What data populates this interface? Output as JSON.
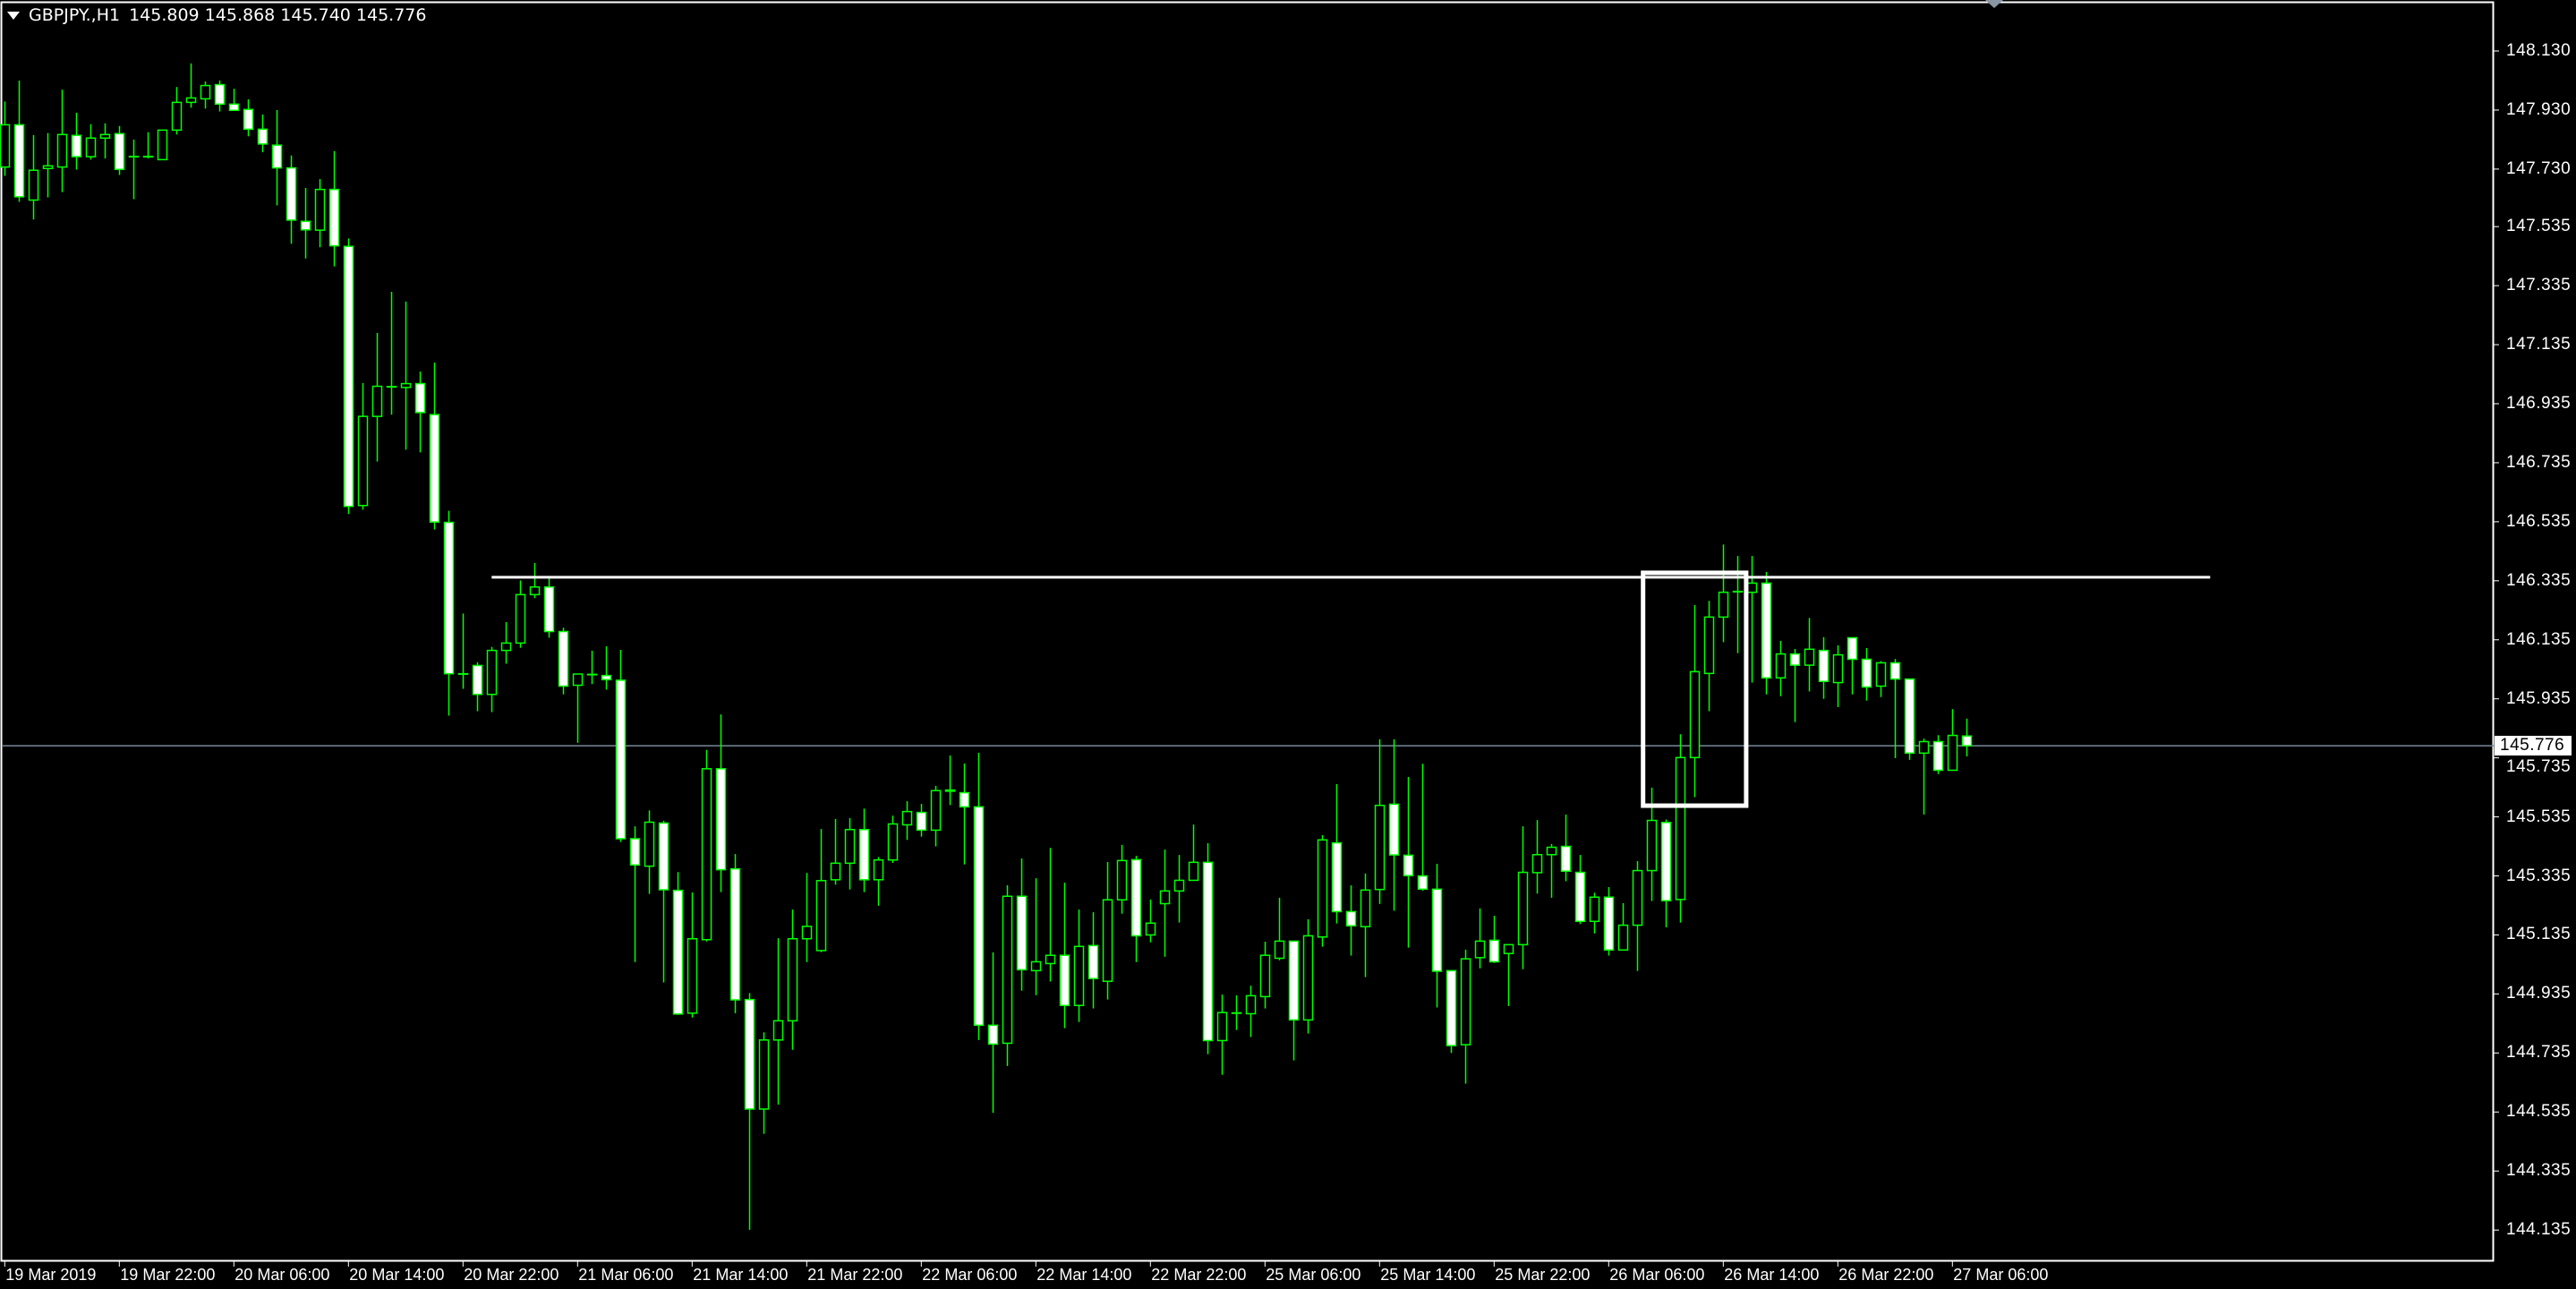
{
  "header": {
    "symbol": "GBPJPY.,H1",
    "ohlc": "145.809 145.868 145.740 145.776"
  },
  "colors": {
    "background": "#000000",
    "axes": "#ffffff",
    "candle_outline": "#00ff00",
    "bear_body": "#ffffff",
    "bull_body": "#000000",
    "current_price_line": "#778899",
    "annotation": "#ffffff"
  },
  "chart_data": {
    "type": "candlestick",
    "symbol": "GBPJPY.",
    "timeframe": "H1",
    "first_bar_time": "19 Mar 2019 14:00",
    "ylim": [
      144.0,
      148.2
    ],
    "grid": false,
    "y_tick_labels": [
      "148.130",
      "147.930",
      "147.730",
      "147.535",
      "147.335",
      "147.135",
      "146.935",
      "146.735",
      "146.535",
      "146.335",
      "146.135",
      "145.935",
      "145.735",
      "145.535",
      "145.335",
      "145.135",
      "144.935",
      "144.735",
      "144.535",
      "144.335",
      "144.135"
    ],
    "x_tick_labels": [
      "19 Mar 2019",
      "19 Mar 22:00",
      "20 Mar 06:00",
      "20 Mar 14:00",
      "20 Mar 22:00",
      "21 Mar 06:00",
      "21 Mar 14:00",
      "21 Mar 22:00",
      "22 Mar 06:00",
      "22 Mar 14:00",
      "22 Mar 22:00",
      "25 Mar 06:00",
      "25 Mar 14:00",
      "25 Mar 22:00",
      "26 Mar 06:00",
      "26 Mar 14:00",
      "26 Mar 22:00",
      "27 Mar 06:00"
    ],
    "x_tick_every_bars": 8,
    "current_price": "145.776",
    "candles_ohlc": [
      [
        147.737,
        147.959,
        147.707,
        147.88
      ],
      [
        147.88,
        148.03,
        147.619,
        147.636
      ],
      [
        147.625,
        147.845,
        147.559,
        147.726
      ],
      [
        147.732,
        147.852,
        147.634,
        147.741
      ],
      [
        147.737,
        147.999,
        147.652,
        147.847
      ],
      [
        147.844,
        147.921,
        147.728,
        147.772
      ],
      [
        147.772,
        147.882,
        147.762,
        147.835
      ],
      [
        147.835,
        147.885,
        147.766,
        147.847
      ],
      [
        147.85,
        147.876,
        147.71,
        147.729
      ],
      [
        147.772,
        147.83,
        147.628,
        147.773
      ],
      [
        147.772,
        147.855,
        147.766,
        147.773
      ],
      [
        147.762,
        147.862,
        147.762,
        147.862
      ],
      [
        147.862,
        148.008,
        147.847,
        147.956
      ],
      [
        147.956,
        148.088,
        147.938,
        147.971
      ],
      [
        147.968,
        148.027,
        147.935,
        148.013
      ],
      [
        148.016,
        148.03,
        147.925,
        147.95
      ],
      [
        147.95,
        148.002,
        147.928,
        147.929
      ],
      [
        147.932,
        147.966,
        147.841,
        147.865
      ],
      [
        147.865,
        147.915,
        147.787,
        147.815
      ],
      [
        147.811,
        147.93,
        147.607,
        147.734
      ],
      [
        147.734,
        147.776,
        147.477,
        147.557
      ],
      [
        147.553,
        147.666,
        147.427,
        147.524
      ],
      [
        147.523,
        147.696,
        147.465,
        147.661
      ],
      [
        147.661,
        147.791,
        147.4,
        147.47
      ],
      [
        147.468,
        147.495,
        146.561,
        146.587
      ],
      [
        146.59,
        147.005,
        146.576,
        146.892
      ],
      [
        146.892,
        147.175,
        146.739,
        146.994
      ],
      [
        146.993,
        147.314,
        146.898,
        146.992
      ],
      [
        146.99,
        147.281,
        146.779,
        147.003
      ],
      [
        147.003,
        147.044,
        146.77,
        146.905
      ],
      [
        146.898,
        147.074,
        146.509,
        146.534
      ],
      [
        146.533,
        146.572,
        145.878,
        146.02
      ],
      [
        146.019,
        146.224,
        145.969,
        146.02
      ],
      [
        146.048,
        146.059,
        145.893,
        145.95
      ],
      [
        145.95,
        146.111,
        145.89,
        146.099
      ],
      [
        146.099,
        146.195,
        146.054,
        146.124
      ],
      [
        146.124,
        146.336,
        146.108,
        146.288
      ],
      [
        146.288,
        146.395,
        146.276,
        146.314
      ],
      [
        146.314,
        146.344,
        146.142,
        146.163
      ],
      [
        146.163,
        146.176,
        145.95,
        145.978
      ],
      [
        145.981,
        146.019,
        145.786,
        146.019
      ],
      [
        146.017,
        146.098,
        145.985,
        146.018
      ],
      [
        146.014,
        146.113,
        145.966,
        146.0
      ],
      [
        145.998,
        146.101,
        145.45,
        145.461
      ],
      [
        145.461,
        145.503,
        145.043,
        145.372
      ],
      [
        145.368,
        145.557,
        145.274,
        145.517
      ],
      [
        145.514,
        145.522,
        144.974,
        145.288
      ],
      [
        145.286,
        145.348,
        144.864,
        144.867
      ],
      [
        144.87,
        145.279,
        144.855,
        145.122
      ],
      [
        145.119,
        145.762,
        145.113,
        145.698
      ],
      [
        145.698,
        145.882,
        145.28,
        145.356
      ],
      [
        145.359,
        145.409,
        144.87,
        144.915
      ],
      [
        144.916,
        144.938,
        144.136,
        144.545
      ],
      [
        144.545,
        144.805,
        144.461,
        144.779
      ],
      [
        144.779,
        145.124,
        144.56,
        144.844
      ],
      [
        144.844,
        145.221,
        144.746,
        145.122
      ],
      [
        145.122,
        145.345,
        145.043,
        145.164
      ],
      [
        145.082,
        145.494,
        145.077,
        145.319
      ],
      [
        145.322,
        145.528,
        145.305,
        145.378
      ],
      [
        145.378,
        145.531,
        145.289,
        145.492
      ],
      [
        145.492,
        145.563,
        145.28,
        145.322
      ],
      [
        145.322,
        145.399,
        145.234,
        145.389
      ],
      [
        145.389,
        145.539,
        145.379,
        145.511
      ],
      [
        145.508,
        145.588,
        145.457,
        145.553
      ],
      [
        145.55,
        145.579,
        145.468,
        145.49
      ],
      [
        145.49,
        145.64,
        145.435,
        145.624
      ],
      [
        145.626,
        145.743,
        145.575,
        145.622
      ],
      [
        145.617,
        145.716,
        145.374,
        145.569
      ],
      [
        145.569,
        145.752,
        144.779,
        144.829
      ],
      [
        144.829,
        145.076,
        144.532,
        144.765
      ],
      [
        144.768,
        145.303,
        144.691,
        145.266
      ],
      [
        145.266,
        145.394,
        144.946,
        145.017
      ],
      [
        145.014,
        145.327,
        144.931,
        145.044
      ],
      [
        145.038,
        145.43,
        144.977,
        145.066
      ],
      [
        145.066,
        145.312,
        144.819,
        144.896
      ],
      [
        144.896,
        145.221,
        144.84,
        145.096
      ],
      [
        145.099,
        145.212,
        144.886,
        144.987
      ],
      [
        144.978,
        145.382,
        144.916,
        145.254
      ],
      [
        145.254,
        145.44,
        145.207,
        145.387
      ],
      [
        145.39,
        145.403,
        145.043,
        145.132
      ],
      [
        145.135,
        145.255,
        145.11,
        145.175
      ],
      [
        145.241,
        145.424,
        145.061,
        145.284
      ],
      [
        145.284,
        145.406,
        145.177,
        145.32
      ],
      [
        145.32,
        145.509,
        145.32,
        145.381
      ],
      [
        145.381,
        145.446,
        144.731,
        144.777
      ],
      [
        144.777,
        144.933,
        144.661,
        144.872
      ],
      [
        144.87,
        144.93,
        144.813,
        144.871
      ],
      [
        144.868,
        144.963,
        144.789,
        144.929
      ],
      [
        144.926,
        145.112,
        144.886,
        145.066
      ],
      [
        145.056,
        145.261,
        145.049,
        145.114
      ],
      [
        145.114,
        145.114,
        144.71,
        144.847
      ],
      [
        144.847,
        145.188,
        144.801,
        145.132
      ],
      [
        145.128,
        145.473,
        145.095,
        145.457
      ],
      [
        145.447,
        145.646,
        145.174,
        145.214
      ],
      [
        145.214,
        145.303,
        145.065,
        145.166
      ],
      [
        145.163,
        145.343,
        144.992,
        145.287
      ],
      [
        145.289,
        145.798,
        145.24,
        145.574
      ],
      [
        145.578,
        145.798,
        145.217,
        145.406
      ],
      [
        145.405,
        145.67,
        145.092,
        145.336
      ],
      [
        145.335,
        145.715,
        145.285,
        145.29
      ],
      [
        145.29,
        145.376,
        144.889,
        145.012
      ],
      [
        145.014,
        145.014,
        144.735,
        144.76
      ],
      [
        144.763,
        145.085,
        144.631,
        145.054
      ],
      [
        145.058,
        145.225,
        145.022,
        145.114
      ],
      [
        145.117,
        145.2,
        145.04,
        145.044
      ],
      [
        145.072,
        145.102,
        144.894,
        145.102
      ],
      [
        145.102,
        145.503,
        145.019,
        145.347
      ],
      [
        145.346,
        145.524,
        145.275,
        145.407
      ],
      [
        145.407,
        145.443,
        145.261,
        145.432
      ],
      [
        145.435,
        145.543,
        145.317,
        145.351
      ],
      [
        145.347,
        145.406,
        145.172,
        145.181
      ],
      [
        145.181,
        145.278,
        145.14,
        145.263
      ],
      [
        145.263,
        145.297,
        145.065,
        145.084
      ],
      [
        145.084,
        145.243,
        145.084,
        145.168
      ],
      [
        145.168,
        145.385,
        145.013,
        145.353
      ],
      [
        145.353,
        145.634,
        145.25,
        145.523
      ],
      [
        145.516,
        145.526,
        145.161,
        145.251
      ],
      [
        145.255,
        145.815,
        145.177,
        145.736
      ],
      [
        145.736,
        146.253,
        145.602,
        146.027
      ],
      [
        146.021,
        146.267,
        145.893,
        146.212
      ],
      [
        146.212,
        146.458,
        146.127,
        146.296
      ],
      [
        146.299,
        146.419,
        146.09,
        146.298
      ],
      [
        146.296,
        146.419,
        145.99,
        146.327
      ],
      [
        146.327,
        146.365,
        145.95,
        146.006
      ],
      [
        146.006,
        146.131,
        145.944,
        146.087
      ],
      [
        146.087,
        146.104,
        145.856,
        146.049
      ],
      [
        146.049,
        146.209,
        145.96,
        146.103
      ],
      [
        146.099,
        146.144,
        145.935,
        145.994
      ],
      [
        145.99,
        146.116,
        145.907,
        146.084
      ],
      [
        146.142,
        146.142,
        145.95,
        146.069
      ],
      [
        146.069,
        146.107,
        145.929,
        145.975
      ],
      [
        145.978,
        146.063,
        145.941,
        146.057
      ],
      [
        146.057,
        146.07,
        145.734,
        146.002
      ],
      [
        146.002,
        146.002,
        145.728,
        145.751
      ],
      [
        145.751,
        145.8,
        145.543,
        145.79
      ],
      [
        145.79,
        145.812,
        145.68,
        145.693
      ],
      [
        145.693,
        145.9,
        145.693,
        145.811
      ],
      [
        145.809,
        145.868,
        145.74,
        145.776
      ]
    ],
    "annotations": {
      "horizontal_line": {
        "price": 146.347,
        "from_bar": 34,
        "to_bar": 154
      },
      "rectangle": {
        "from_bar": 114.4,
        "to_bar": 121.6,
        "price_top": 146.362,
        "price_bottom": 145.573
      }
    }
  }
}
